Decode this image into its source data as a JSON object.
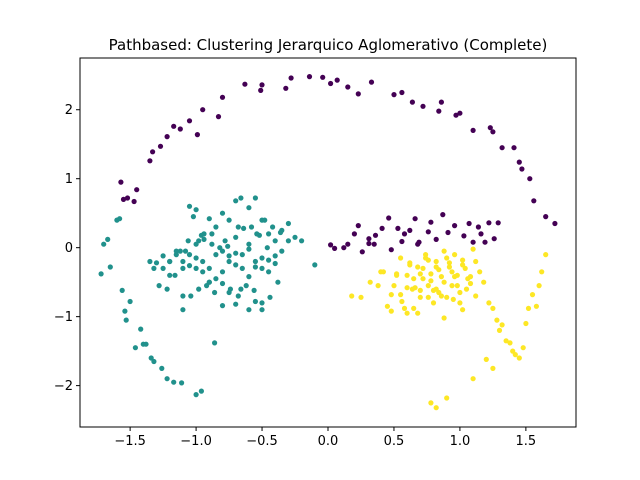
{
  "chart_data": {
    "type": "scatter",
    "title": "Pathbased: Clustering Jerarquico Aglomerativo (Complete)",
    "xlabel": "",
    "ylabel": "",
    "xlim": [
      -1.88,
      1.88
    ],
    "ylim": [
      -2.6,
      2.75
    ],
    "xticks": [
      -1.5,
      -1.0,
      -0.5,
      0.0,
      0.5,
      1.0,
      1.5
    ],
    "xtick_labels": [
      "−1.5",
      "−1.0",
      "−0.5",
      "0.0",
      "0.5",
      "1.0",
      "1.5"
    ],
    "yticks": [
      -2,
      -1,
      0,
      1,
      2
    ],
    "ytick_labels": [
      "−2",
      "−1",
      "0",
      "1",
      "2"
    ],
    "grid": false,
    "series": [
      {
        "color": "#440154",
        "x": [
          -1.57,
          -1.55,
          -1.52,
          -1.47,
          -1.45,
          -1.35,
          -1.33,
          -1.27,
          -1.22,
          -1.17,
          -1.12,
          -1.05,
          -0.99,
          -0.95,
          -0.83,
          -0.8,
          -0.63,
          -0.51,
          -0.5,
          -0.32,
          -0.28,
          -0.14,
          -0.04,
          0.02,
          0.07,
          0.15,
          0.23,
          0.33,
          0.5,
          0.56,
          0.64,
          0.72,
          0.84,
          0.86,
          0.97,
          1.0,
          1.1,
          1.23,
          1.25,
          1.32,
          1.41,
          1.45,
          1.47,
          1.53,
          1.56,
          1.65,
          1.72,
          0.15,
          0.2,
          0.23,
          0.31,
          0.36,
          0.46,
          0.53,
          0.58,
          0.66,
          0.76,
          0.78,
          0.87,
          0.96,
          1.03,
          1.1,
          1.14,
          1.22,
          1.26,
          0.05,
          0.12,
          0.26,
          0.31,
          0.35,
          0.48,
          0.56,
          0.62,
          0.68,
          0.82,
          0.91,
          1.07,
          1.16,
          1.19,
          1.29,
          0.02,
          0.41,
          0.69
        ],
        "y": [
          0.95,
          0.7,
          0.72,
          0.67,
          0.84,
          1.26,
          1.39,
          1.47,
          1.61,
          1.76,
          1.72,
          1.84,
          1.64,
          2.0,
          1.9,
          2.18,
          2.37,
          2.28,
          2.36,
          2.31,
          2.46,
          2.48,
          2.47,
          2.38,
          2.43,
          2.33,
          2.23,
          2.4,
          2.22,
          2.25,
          2.11,
          2.05,
          1.98,
          2.11,
          1.92,
          1.95,
          1.7,
          1.74,
          1.68,
          1.45,
          1.45,
          1.24,
          1.14,
          1.0,
          0.68,
          0.45,
          0.35,
          0.05,
          0.2,
          0.32,
          0.06,
          0.18,
          0.43,
          0.28,
          0.2,
          0.42,
          0.23,
          0.37,
          0.48,
          0.32,
          0.17,
          0.08,
          0.3,
          0.36,
          0.13,
          -0.01,
          0.0,
          -0.06,
          0.13,
          0.05,
          -0.03,
          0.09,
          0.25,
          0.05,
          0.12,
          0.22,
          0.35,
          0.2,
          0.08,
          0.36,
          0.04,
          0.28,
          0.08
        ]
      },
      {
        "color": "#21918c",
        "x": [
          -1.72,
          -1.7,
          -1.67,
          -1.65,
          -1.6,
          -1.58,
          -1.56,
          -1.54,
          -1.53,
          -1.5,
          -1.46,
          -1.42,
          -1.4,
          -1.38,
          -1.34,
          -1.32,
          -1.26,
          -1.22,
          -1.17,
          -1.11,
          -1.0,
          -0.96,
          -0.86,
          -1.0,
          -1.05,
          -1.02,
          -0.98,
          -0.94,
          -0.9,
          -0.85,
          -0.8,
          -0.75,
          -0.7,
          -0.66,
          -0.6,
          -0.55,
          -0.5,
          -0.45,
          -0.4,
          -0.35,
          -0.3,
          -0.25,
          -0.2,
          -0.1,
          -1.32,
          -1.25,
          -1.2,
          -1.15,
          -1.1,
          -1.05,
          -1.0,
          -0.95,
          -0.9,
          -0.85,
          -0.8,
          -0.75,
          -0.7,
          -0.65,
          -0.6,
          -0.55,
          -0.5,
          -0.45,
          -0.4,
          -0.35,
          -1.3,
          -1.25,
          -1.2,
          -1.15,
          -1.1,
          -1.05,
          -1.0,
          -0.95,
          -0.9,
          -0.85,
          -0.8,
          -0.75,
          -0.7,
          -0.65,
          -0.6,
          -0.55,
          -0.5,
          -0.45,
          -0.4,
          -1.35,
          -1.28,
          -1.22,
          -1.16,
          -1.1,
          -1.04,
          -0.98,
          -0.92,
          -0.86,
          -0.8,
          -0.74,
          -0.68,
          -0.62,
          -0.56,
          -0.5,
          -0.44,
          -0.38,
          -1.2,
          -1.12,
          -1.06,
          -1.0,
          -0.94,
          -0.88,
          -0.82,
          -0.76,
          -0.7,
          -0.64,
          -0.58,
          -0.52,
          -0.46,
          -1.08,
          -0.96,
          -0.88,
          -0.78,
          -0.68,
          -0.6,
          -0.54,
          -0.48,
          -0.42,
          -0.36,
          -0.3,
          -0.66,
          -0.7,
          -0.8,
          -0.55,
          -0.6,
          -0.5,
          -0.9,
          -1.1,
          -0.75
        ],
        "y": [
          -0.38,
          0.05,
          0.12,
          -0.28,
          0.4,
          0.42,
          -0.62,
          -0.92,
          -1.05,
          -0.78,
          -1.45,
          -1.18,
          -1.4,
          -1.4,
          -1.6,
          -1.65,
          -1.75,
          -1.9,
          -1.95,
          -1.96,
          -2.13,
          -2.08,
          -1.38,
          0.55,
          0.6,
          0.45,
          0.1,
          0.2,
          0.42,
          0.3,
          0.5,
          0.4,
          0.68,
          0.72,
          0.58,
          0.72,
          0.4,
          0.2,
          0.1,
          0.25,
          0.1,
          0.15,
          0.1,
          -0.25,
          -0.3,
          -0.12,
          -0.2,
          -0.05,
          -0.2,
          -0.1,
          -0.3,
          -0.35,
          -0.5,
          -0.45,
          -0.35,
          -0.2,
          -0.25,
          -0.3,
          -0.42,
          -0.2,
          -0.15,
          -0.18,
          -0.23,
          -0.05,
          -0.22,
          -0.3,
          -0.4,
          -0.1,
          -0.3,
          -0.26,
          -0.15,
          -0.2,
          -0.3,
          -0.1,
          -0.05,
          -0.12,
          -0.08,
          -0.1,
          -0.02,
          -0.28,
          -0.3,
          -0.35,
          -0.12,
          -0.2,
          -0.55,
          -0.6,
          -0.4,
          -0.7,
          -0.7,
          -0.6,
          -0.55,
          -0.65,
          -0.52,
          -0.6,
          -0.7,
          -0.55,
          -0.62,
          -0.8,
          -0.72,
          -0.5,
          -0.2,
          -0.05,
          0.1,
          0.05,
          0.12,
          0.2,
          0.0,
          0.02,
          0.15,
          0.28,
          0.3,
          0.18,
          0.0,
          -0.05,
          0.18,
          0.05,
          0.1,
          0.3,
          0.05,
          0.2,
          0.4,
          0.3,
          0.22,
          0.35,
          -0.6,
          -0.82,
          -0.84,
          -0.78,
          -0.9,
          -0.9,
          -0.5,
          -0.9,
          -0.65
        ],
        "marker": "circle"
      },
      {
        "color": "#fde725",
        "x": [
          0.18,
          0.25,
          0.32,
          0.38,
          0.4,
          0.45,
          0.48,
          0.52,
          0.55,
          0.58,
          0.6,
          0.62,
          0.65,
          0.68,
          0.7,
          0.72,
          0.74,
          0.76,
          0.78,
          0.8,
          0.82,
          0.84,
          0.86,
          0.88,
          0.9,
          0.92,
          0.94,
          0.96,
          0.98,
          1.0,
          1.02,
          1.05,
          1.08,
          1.1,
          1.12,
          1.15,
          1.18,
          1.22,
          1.25,
          1.28,
          1.3,
          1.32,
          1.35,
          1.38,
          1.4,
          1.42,
          1.45,
          1.48,
          1.5,
          1.52,
          1.55,
          1.58,
          1.6,
          1.62,
          1.65,
          0.42,
          0.5,
          0.55,
          0.6,
          0.64,
          0.68,
          0.72,
          0.76,
          0.8,
          0.84,
          0.88,
          0.92,
          0.96,
          1.0,
          1.04,
          1.08,
          1.12,
          0.48,
          0.52,
          0.56,
          0.62,
          0.66,
          0.7,
          0.74,
          0.78,
          0.82,
          0.86,
          0.9,
          0.94,
          0.98,
          1.02,
          1.06,
          0.6,
          0.65,
          0.7,
          0.76,
          0.82,
          0.88,
          0.95,
          1.02,
          1.1,
          1.2,
          1.25,
          0.78,
          0.82,
          0.9
        ],
        "y": [
          -0.7,
          -0.72,
          -0.5,
          -0.55,
          -0.35,
          -0.85,
          -0.92,
          -0.38,
          -0.68,
          -0.88,
          -0.58,
          -0.25,
          -0.45,
          -0.95,
          -0.72,
          -0.3,
          -0.15,
          -0.55,
          -0.38,
          -0.8,
          -0.2,
          -0.65,
          -0.42,
          -0.05,
          -0.72,
          -0.28,
          -0.55,
          -0.1,
          -0.4,
          -0.8,
          -0.18,
          -0.6,
          -0.42,
          -0.02,
          -0.7,
          -0.35,
          -0.5,
          -0.8,
          -0.88,
          -1.05,
          -1.2,
          -1.12,
          -1.35,
          -1.38,
          -1.5,
          -1.55,
          -1.6,
          -1.45,
          -1.1,
          -0.88,
          -0.68,
          -0.85,
          -0.55,
          -0.35,
          -0.1,
          -0.35,
          -0.55,
          -0.15,
          -0.4,
          -0.6,
          -0.28,
          -0.45,
          -0.18,
          -0.62,
          -0.32,
          -0.5,
          -0.22,
          -0.42,
          -0.65,
          -0.3,
          -0.52,
          -0.2,
          -0.68,
          -0.4,
          -0.78,
          -0.22,
          -0.58,
          -0.38,
          -0.1,
          -0.48,
          -0.28,
          -0.7,
          -0.15,
          -0.35,
          -0.55,
          -0.25,
          -0.45,
          -0.95,
          -0.88,
          -0.62,
          -0.72,
          -0.6,
          -1.02,
          -0.75,
          -0.9,
          -1.9,
          -1.62,
          -1.75,
          -2.25,
          -2.32,
          -2.18
        ],
        "marker": "circle"
      }
    ]
  }
}
